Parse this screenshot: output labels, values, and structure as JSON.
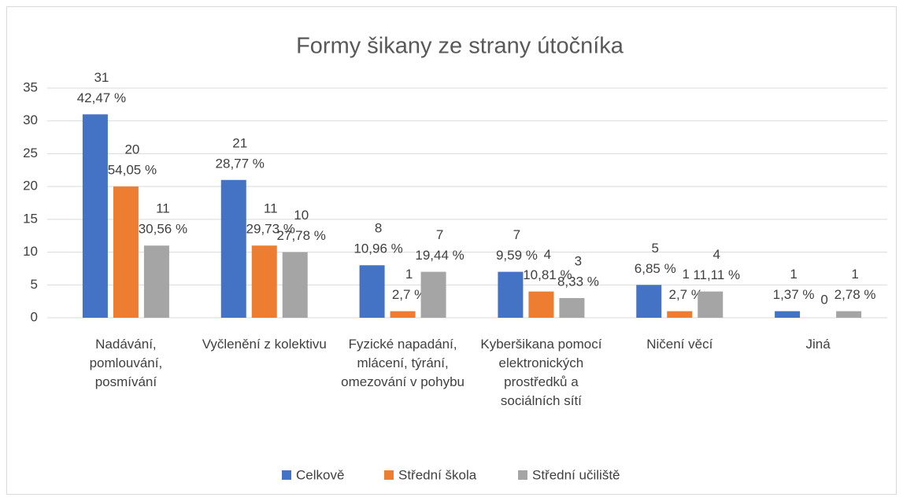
{
  "chart_data": {
    "type": "bar",
    "title": "Formy šikany ze strany útočníka",
    "categories": [
      "Nadávání, pomlouvání, posmívání",
      "Vyčlenění z kolektivu",
      "Fyzické napadání, mlácení, týrání, omezování v pohybu",
      "Kyberšikana pomocí elektronických prostředků a sociálních sítí",
      "Ničení věcí",
      "Jiná"
    ],
    "series": [
      {
        "name": "Celkově",
        "color": "#4472c4",
        "values": [
          31,
          21,
          8,
          7,
          5,
          1
        ],
        "percentage_labels": [
          "42,47 %",
          "28,77 %",
          "10,96 %",
          "9,59 %",
          "6,85 %",
          "1,37 %"
        ]
      },
      {
        "name": "Střední škola",
        "color": "#ed7d31",
        "values": [
          20,
          11,
          1,
          4,
          1,
          0
        ],
        "percentage_labels": [
          "54,05 %",
          "29,73 %",
          "2,7 %",
          "10,81 %",
          "2,7 %",
          null
        ]
      },
      {
        "name": "Střední učiliště",
        "color": "#a5a5a5",
        "values": [
          11,
          10,
          7,
          3,
          4,
          1
        ],
        "percentage_labels": [
          "30,56 %",
          "27,78 %",
          "19,44 %",
          "8,33 %",
          "11,11 %",
          "2,78 %"
        ]
      }
    ],
    "ylim": [
      0,
      35
    ],
    "yticks": [
      0,
      5,
      10,
      15,
      20,
      25,
      30,
      35
    ],
    "grid": true,
    "legend": "bottom"
  }
}
